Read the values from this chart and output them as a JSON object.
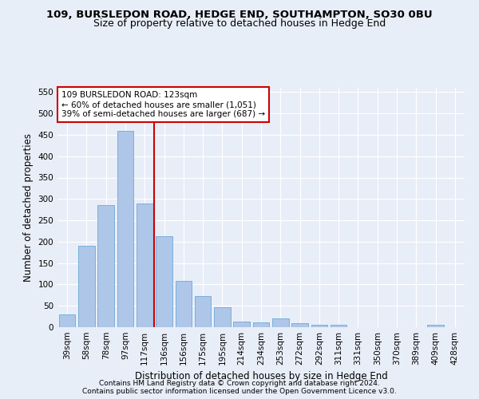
{
  "title1": "109, BURSLEDON ROAD, HEDGE END, SOUTHAMPTON, SO30 0BU",
  "title2": "Size of property relative to detached houses in Hedge End",
  "xlabel": "Distribution of detached houses by size in Hedge End",
  "ylabel": "Number of detached properties",
  "footnote1": "Contains HM Land Registry data © Crown copyright and database right 2024.",
  "footnote2": "Contains public sector information licensed under the Open Government Licence v3.0.",
  "categories": [
    "39sqm",
    "58sqm",
    "78sqm",
    "97sqm",
    "117sqm",
    "136sqm",
    "156sqm",
    "175sqm",
    "195sqm",
    "214sqm",
    "234sqm",
    "253sqm",
    "272sqm",
    "292sqm",
    "311sqm",
    "331sqm",
    "350sqm",
    "370sqm",
    "389sqm",
    "409sqm",
    "428sqm"
  ],
  "values": [
    30,
    190,
    285,
    460,
    290,
    213,
    108,
    73,
    46,
    13,
    11,
    21,
    9,
    5,
    5,
    0,
    0,
    0,
    0,
    5,
    0
  ],
  "bar_color": "#aec6e8",
  "bar_edgecolor": "#5a9fd4",
  "annotation_title": "109 BURSLEDON ROAD: 123sqm",
  "annotation_line1": "← 60% of detached houses are smaller (1,051)",
  "annotation_line2": "39% of semi-detached houses are larger (687) →",
  "annotation_box_color": "#ffffff",
  "annotation_box_edgecolor": "#cc0000",
  "vline_color": "#cc0000",
  "ylim": [
    0,
    560
  ],
  "yticks": [
    0,
    50,
    100,
    150,
    200,
    250,
    300,
    350,
    400,
    450,
    500,
    550
  ],
  "background_color": "#e8eef8",
  "grid_color": "#ffffff",
  "title_fontsize": 9.5,
  "subtitle_fontsize": 9,
  "axis_label_fontsize": 8.5,
  "tick_fontsize": 7.5,
  "footnote_fontsize": 6.5
}
